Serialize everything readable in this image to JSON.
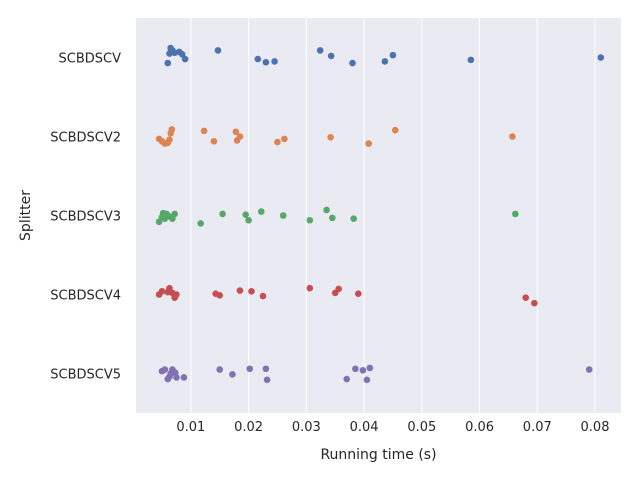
{
  "chart_data": {
    "type": "scatter",
    "style": "strip",
    "title": "",
    "xlabel": "Running time (s)",
    "ylabel": "Splitter",
    "xlim": [
      0.0005,
      0.0845
    ],
    "xticks": [
      0.01,
      0.02,
      0.03,
      0.04,
      0.05,
      0.06,
      0.07,
      0.08
    ],
    "xtick_labels": [
      "0.01",
      "0.02",
      "0.03",
      "0.04",
      "0.05",
      "0.06",
      "0.07",
      "0.08"
    ],
    "grid": true,
    "background": "#eaeaf2",
    "categories": [
      "SCBDSCV",
      "SCBDSCV2",
      "SCBDSCV3",
      "SCBDSCV4",
      "SCBDSCV5"
    ],
    "series": [
      {
        "name": "SCBDSCV",
        "color": "#4c72b0",
        "points": [
          [
            0.006,
            0.07
          ],
          [
            0.0065,
            -0.12
          ],
          [
            0.0063,
            -0.05
          ],
          [
            0.0068,
            -0.09
          ],
          [
            0.0072,
            -0.06
          ],
          [
            0.008,
            -0.07
          ],
          [
            0.0085,
            -0.04
          ],
          [
            0.009,
            0.02
          ],
          [
            0.0147,
            -0.09
          ],
          [
            0.0216,
            0.02
          ],
          [
            0.023,
            0.06
          ],
          [
            0.0245,
            0.05
          ],
          [
            0.0324,
            -0.09
          ],
          [
            0.0343,
            -0.02
          ],
          [
            0.038,
            0.07
          ],
          [
            0.0436,
            0.05
          ],
          [
            0.045,
            -0.03
          ],
          [
            0.0585,
            0.03
          ],
          [
            0.081,
            0.0
          ]
        ]
      },
      {
        "name": "SCBDSCV2",
        "color": "#dd8452",
        "points": [
          [
            0.0045,
            0.03
          ],
          [
            0.005,
            0.06
          ],
          [
            0.0055,
            0.09
          ],
          [
            0.006,
            0.08
          ],
          [
            0.0063,
            0.04
          ],
          [
            0.0065,
            -0.04
          ],
          [
            0.0067,
            -0.09
          ],
          [
            0.0123,
            -0.07
          ],
          [
            0.014,
            0.06
          ],
          [
            0.0178,
            -0.06
          ],
          [
            0.018,
            0.05
          ],
          [
            0.0185,
            0.0
          ],
          [
            0.025,
            0.07
          ],
          [
            0.0262,
            0.03
          ],
          [
            0.0342,
            0.01
          ],
          [
            0.0408,
            0.09
          ],
          [
            0.0454,
            -0.08
          ],
          [
            0.0657,
            0.0
          ]
        ]
      },
      {
        "name": "SCBDSCV3",
        "color": "#55a868",
        "points": [
          [
            0.0045,
            0.08
          ],
          [
            0.005,
            0.02
          ],
          [
            0.0052,
            -0.03
          ],
          [
            0.0055,
            0.04
          ],
          [
            0.0058,
            -0.02
          ],
          [
            0.0062,
            0.01
          ],
          [
            0.0068,
            0.04
          ],
          [
            0.0072,
            -0.02
          ],
          [
            0.0117,
            0.1
          ],
          [
            0.0155,
            -0.02
          ],
          [
            0.0195,
            -0.01
          ],
          [
            0.02,
            0.06
          ],
          [
            0.0222,
            -0.05
          ],
          [
            0.026,
            0.0
          ],
          [
            0.0306,
            0.06
          ],
          [
            0.0335,
            -0.07
          ],
          [
            0.0345,
            0.03
          ],
          [
            0.0382,
            0.04
          ],
          [
            0.0662,
            -0.02
          ]
        ]
      },
      {
        "name": "SCBDSCV4",
        "color": "#c44e52",
        "points": [
          [
            0.0045,
            0.0
          ],
          [
            0.005,
            -0.04
          ],
          [
            0.006,
            -0.03
          ],
          [
            0.0063,
            -0.08
          ],
          [
            0.0068,
            -0.02
          ],
          [
            0.0072,
            0.04
          ],
          [
            0.0075,
            0.0
          ],
          [
            0.0143,
            -0.01
          ],
          [
            0.015,
            0.01
          ],
          [
            0.0185,
            -0.05
          ],
          [
            0.0205,
            -0.04
          ],
          [
            0.0225,
            0.02
          ],
          [
            0.0306,
            -0.08
          ],
          [
            0.035,
            -0.02
          ],
          [
            0.0356,
            -0.07
          ],
          [
            0.039,
            -0.01
          ],
          [
            0.068,
            0.04
          ],
          [
            0.0695,
            0.11
          ]
        ]
      },
      {
        "name": "SCBDSCV5",
        "color": "#8172b3",
        "points": [
          [
            0.005,
            -0.03
          ],
          [
            0.0055,
            -0.05
          ],
          [
            0.006,
            0.07
          ],
          [
            0.0063,
            0.04
          ],
          [
            0.0065,
            0.0
          ],
          [
            0.0068,
            -0.05
          ],
          [
            0.0073,
            -0.01
          ],
          [
            0.0075,
            0.05
          ],
          [
            0.0088,
            0.05
          ],
          [
            0.015,
            -0.05
          ],
          [
            0.0172,
            0.01
          ],
          [
            0.0202,
            -0.06
          ],
          [
            0.023,
            -0.06
          ],
          [
            0.0232,
            0.08
          ],
          [
            0.037,
            0.07
          ],
          [
            0.0385,
            -0.06
          ],
          [
            0.0398,
            -0.04
          ],
          [
            0.0405,
            0.08
          ],
          [
            0.041,
            -0.07
          ],
          [
            0.079,
            -0.05
          ]
        ]
      }
    ]
  }
}
